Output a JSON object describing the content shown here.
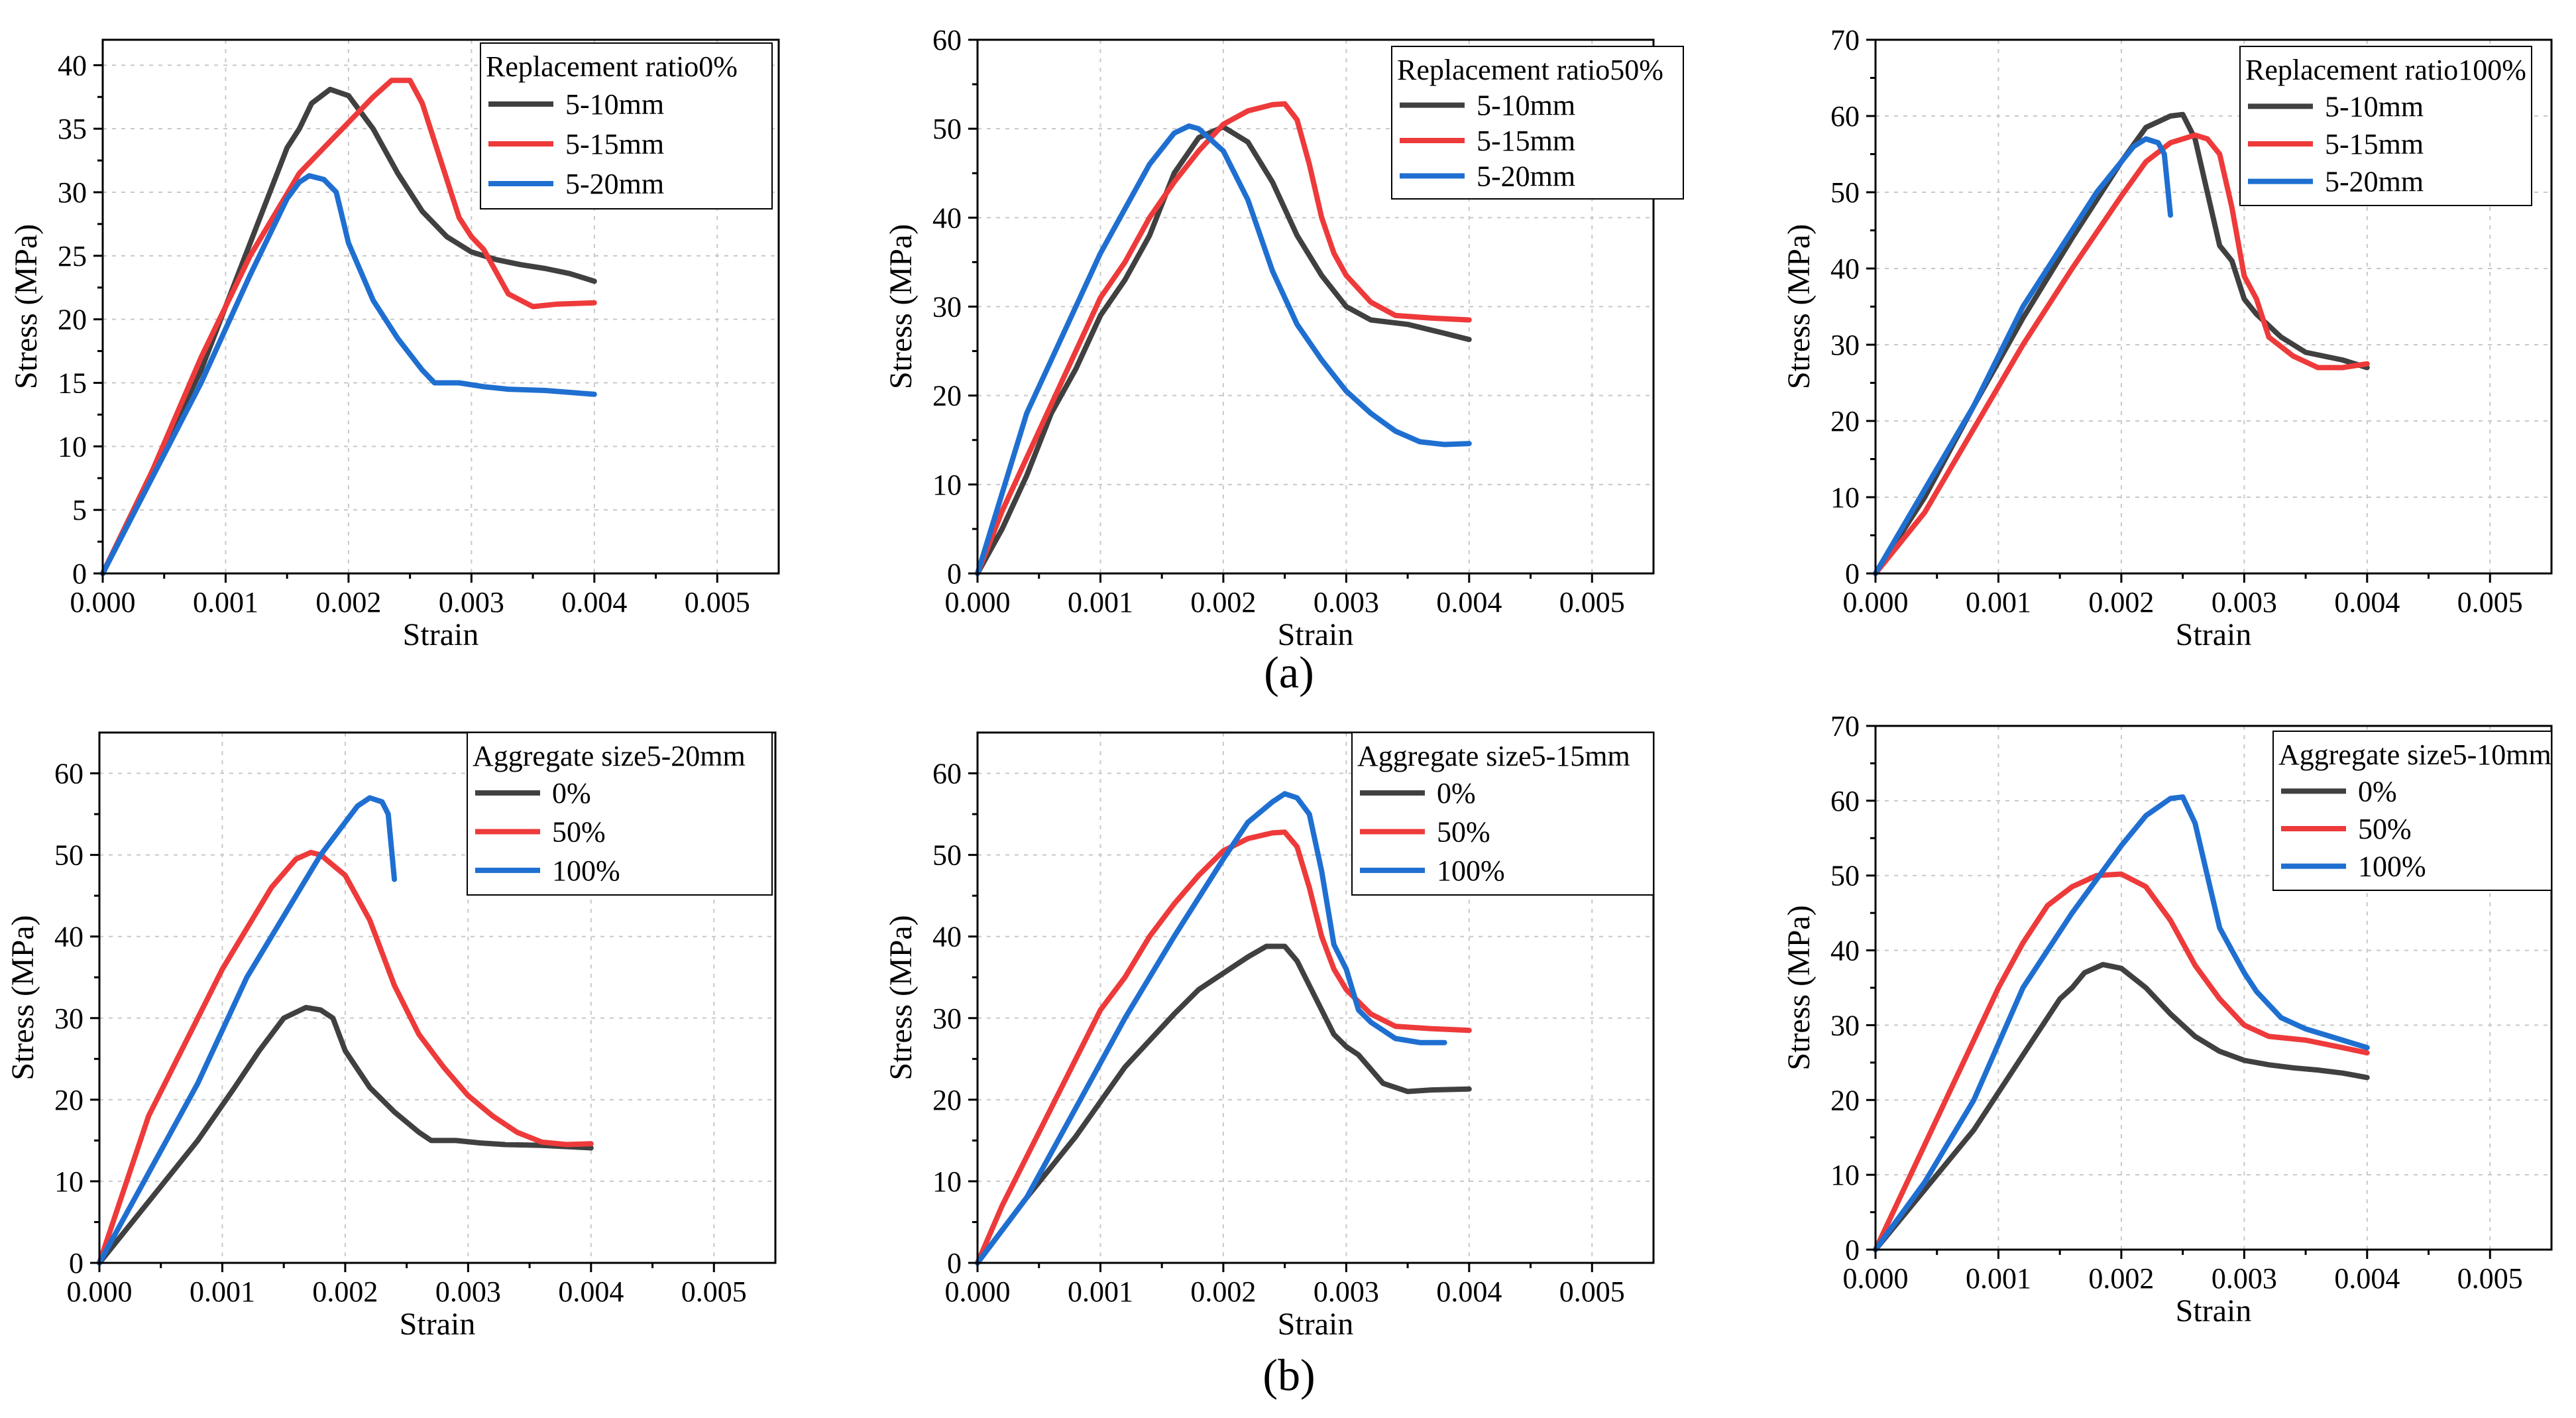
{
  "colors": {
    "series1": "#404040",
    "series2": "#ee3a3a",
    "series3": "#1f6fd1",
    "grid": "#c8c8c8"
  },
  "panel_labels": {
    "a": "(a)",
    "b": "(b)"
  },
  "chart_data": [
    {
      "type": "line",
      "title": "",
      "legend_title": "Replacement ratio0%",
      "xlabel": "Strain",
      "ylabel": "Stress (MPa)",
      "xlim": [
        0,
        0.0055
      ],
      "ylim": [
        0,
        42
      ],
      "xticks": [
        0,
        0.001,
        0.002,
        0.003,
        0.004,
        0.005
      ],
      "xtick_labels": [
        "0.000",
        "0.001",
        "0.002",
        "0.003",
        "0.004",
        "0.005"
      ],
      "yticks": [
        0,
        5,
        10,
        15,
        20,
        25,
        30,
        35,
        40
      ],
      "ytick_labels": [
        "0",
        "5",
        "10",
        "15",
        "20",
        "25",
        "30",
        "35",
        "40"
      ],
      "series": [
        {
          "name": "5-10mm",
          "x": [
            0,
            0.0004,
            0.0008,
            0.0012,
            0.0015,
            0.0016,
            0.0017,
            0.00185,
            0.002,
            0.0022,
            0.0024,
            0.0026,
            0.0028,
            0.003,
            0.0032,
            0.0034,
            0.0036,
            0.0038,
            0.004
          ],
          "y": [
            0,
            8,
            16,
            26,
            33.5,
            35,
            37,
            38.1,
            37.6,
            35,
            31.5,
            28.5,
            26.5,
            25.3,
            24.7,
            24.3,
            24,
            23.6,
            23
          ]
        },
        {
          "name": "5-15mm",
          "x": [
            0,
            0.0004,
            0.0008,
            0.0012,
            0.0016,
            0.0018,
            0.002,
            0.0022,
            0.00235,
            0.0025,
            0.0026,
            0.0027,
            0.0029,
            0.003,
            0.0031,
            0.0033,
            0.0035,
            0.0037,
            0.004
          ],
          "y": [
            0,
            8,
            17,
            25,
            31.5,
            33.5,
            35.5,
            37.5,
            38.8,
            38.8,
            37,
            34,
            28,
            26.5,
            25.5,
            22,
            21,
            21.2,
            21.3
          ]
        },
        {
          "name": "5-20mm",
          "x": [
            0,
            0.0004,
            0.0008,
            0.0012,
            0.0015,
            0.0016,
            0.00168,
            0.0018,
            0.0019,
            0.002,
            0.0022,
            0.0024,
            0.0026,
            0.0027,
            0.0029,
            0.0031,
            0.0033,
            0.0036,
            0.004
          ],
          "y": [
            0,
            7.5,
            15,
            23.5,
            29.5,
            30.8,
            31.3,
            31,
            30,
            26,
            21.5,
            18.5,
            16,
            15,
            15,
            14.7,
            14.5,
            14.4,
            14.1
          ]
        }
      ]
    },
    {
      "type": "line",
      "title": "",
      "legend_title": "Replacement ratio50%",
      "xlabel": "Strain",
      "ylabel": "Stress (MPa)",
      "xlim": [
        0,
        0.0055
      ],
      "ylim": [
        0,
        60
      ],
      "xticks": [
        0,
        0.001,
        0.002,
        0.003,
        0.004,
        0.005
      ],
      "xtick_labels": [
        "0.000",
        "0.001",
        "0.002",
        "0.003",
        "0.004",
        "0.005"
      ],
      "yticks": [
        0,
        10,
        20,
        30,
        40,
        50,
        60
      ],
      "ytick_labels": [
        "0",
        "10",
        "20",
        "30",
        "40",
        "50",
        "60"
      ],
      "series": [
        {
          "name": "5-10mm",
          "x": [
            0,
            0.0002,
            0.0004,
            0.0006,
            0.0008,
            0.001,
            0.0012,
            0.0014,
            0.0016,
            0.0018,
            0.002,
            0.0022,
            0.0024,
            0.0026,
            0.0028,
            0.003,
            0.0032,
            0.0035,
            0.0038,
            0.004
          ],
          "y": [
            0,
            5,
            11,
            18,
            23,
            29,
            33,
            38,
            45,
            49,
            50.2,
            48.5,
            44,
            38,
            33.5,
            30,
            28.5,
            28,
            27,
            26.3
          ]
        },
        {
          "name": "5-15mm",
          "x": [
            0,
            0.0002,
            0.0004,
            0.0006,
            0.0008,
            0.001,
            0.0012,
            0.0014,
            0.0016,
            0.0018,
            0.002,
            0.0022,
            0.0024,
            0.0025,
            0.0026,
            0.0027,
            0.0028,
            0.0029,
            0.003,
            0.0032,
            0.0034,
            0.0037,
            0.004
          ],
          "y": [
            0,
            7,
            13,
            19,
            25,
            31,
            35,
            40,
            44,
            47.5,
            50.5,
            52,
            52.7,
            52.8,
            51,
            46,
            40,
            36,
            33.5,
            30.5,
            29,
            28.7,
            28.5
          ]
        },
        {
          "name": "5-20mm",
          "x": [
            0,
            0.0002,
            0.0004,
            0.0006,
            0.0008,
            0.001,
            0.0012,
            0.0014,
            0.0016,
            0.00172,
            0.0018,
            0.002,
            0.0022,
            0.0024,
            0.0026,
            0.0028,
            0.003,
            0.0032,
            0.0034,
            0.0036,
            0.0038,
            0.004
          ],
          "y": [
            0,
            9,
            18,
            24,
            30,
            36,
            41,
            46,
            49.5,
            50.3,
            50,
            47.5,
            42,
            34,
            28,
            24,
            20.5,
            18,
            16,
            14.8,
            14.5,
            14.6
          ]
        }
      ]
    },
    {
      "type": "line",
      "title": "",
      "legend_title": "Replacement ratio100%",
      "xlabel": "Strain",
      "ylabel": "Stress (MPa)",
      "xlim": [
        0,
        0.0055
      ],
      "ylim": [
        0,
        70
      ],
      "xticks": [
        0,
        0.001,
        0.002,
        0.003,
        0.004,
        0.005
      ],
      "xtick_labels": [
        "0.000",
        "0.001",
        "0.002",
        "0.003",
        "0.004",
        "0.005"
      ],
      "yticks": [
        0,
        10,
        20,
        30,
        40,
        50,
        60,
        70
      ],
      "ytick_labels": [
        "0",
        "10",
        "20",
        "30",
        "40",
        "50",
        "60",
        "70"
      ],
      "series": [
        {
          "name": "5-10mm",
          "x": [
            0,
            0.0004,
            0.0008,
            0.0012,
            0.0016,
            0.002,
            0.0022,
            0.0024,
            0.0025,
            0.0026,
            0.0027,
            0.0028,
            0.0029,
            0.003,
            0.0031,
            0.0033,
            0.0035,
            0.0038,
            0.004
          ],
          "y": [
            0,
            10,
            22,
            33.5,
            44,
            54,
            58.5,
            60,
            60.2,
            57,
            50,
            43,
            41,
            36,
            34,
            31,
            29,
            28,
            27
          ]
        },
        {
          "name": "5-15mm",
          "x": [
            0,
            0.0004,
            0.0008,
            0.0012,
            0.0016,
            0.002,
            0.0022,
            0.0024,
            0.0026,
            0.0027,
            0.0028,
            0.0029,
            0.003,
            0.0031,
            0.0032,
            0.0034,
            0.0036,
            0.0038,
            0.004
          ],
          "y": [
            0,
            8,
            19,
            30,
            40,
            49.5,
            54,
            56.5,
            57.5,
            57,
            55,
            48,
            39,
            36,
            31,
            28.5,
            27,
            27,
            27.5
          ]
        },
        {
          "name": "5-20mm",
          "x": [
            0,
            0.0004,
            0.0008,
            0.0012,
            0.0016,
            0.0018,
            0.002,
            0.0021,
            0.0022,
            0.0023,
            0.00235,
            0.0024
          ],
          "y": [
            0,
            11,
            22,
            35,
            45,
            50,
            54,
            56,
            57,
            56.5,
            55,
            47
          ]
        }
      ]
    },
    {
      "type": "line",
      "title": "",
      "legend_title": "Aggregate size5-20mm",
      "xlabel": "Strain",
      "ylabel": "Stress (MPa)",
      "xlim": [
        0,
        0.0055
      ],
      "ylim": [
        0,
        65
      ],
      "xticks": [
        0,
        0.001,
        0.002,
        0.003,
        0.004,
        0.005
      ],
      "xtick_labels": [
        "0.000",
        "0.001",
        "0.002",
        "0.003",
        "0.004",
        "0.005"
      ],
      "yticks": [
        0,
        10,
        20,
        30,
        40,
        50,
        60
      ],
      "ytick_labels": [
        "0",
        "10",
        "20",
        "30",
        "40",
        "50",
        "60"
      ],
      "series": [
        {
          "name": "0%",
          "x": [
            0,
            0.0004,
            0.0008,
            0.0011,
            0.0013,
            0.0015,
            0.00168,
            0.0018,
            0.0019,
            0.002,
            0.0022,
            0.0024,
            0.0026,
            0.0027,
            0.0029,
            0.0031,
            0.0033,
            0.0036,
            0.004
          ],
          "y": [
            0,
            7.5,
            15,
            21.5,
            26,
            30,
            31.3,
            31,
            30,
            26,
            21.5,
            18.5,
            16,
            15,
            15,
            14.7,
            14.5,
            14.4,
            14.1
          ]
        },
        {
          "name": "50%",
          "x": [
            0,
            0.0002,
            0.0004,
            0.0006,
            0.0008,
            0.001,
            0.0012,
            0.0014,
            0.0016,
            0.00172,
            0.0018,
            0.002,
            0.0022,
            0.0024,
            0.0026,
            0.0028,
            0.003,
            0.0032,
            0.0034,
            0.0036,
            0.0038,
            0.004
          ],
          "y": [
            0,
            9,
            18,
            24,
            30,
            36,
            41,
            46,
            49.5,
            50.3,
            50,
            47.5,
            42,
            34,
            28,
            24,
            20.5,
            18,
            16,
            14.8,
            14.5,
            14.6
          ]
        },
        {
          "name": "100%",
          "x": [
            0,
            0.0004,
            0.0008,
            0.0012,
            0.0016,
            0.0018,
            0.002,
            0.0021,
            0.0022,
            0.0023,
            0.00235,
            0.0024
          ],
          "y": [
            0,
            11,
            22,
            35,
            45,
            50,
            54,
            56,
            57,
            56.5,
            55,
            47
          ]
        }
      ]
    },
    {
      "type": "line",
      "title": "",
      "legend_title": "Aggregate size5-15mm",
      "xlabel": "Strain",
      "ylabel": "Stress (MPa)",
      "xlim": [
        0,
        0.0055
      ],
      "ylim": [
        0,
        65
      ],
      "xticks": [
        0,
        0.001,
        0.002,
        0.003,
        0.004,
        0.005
      ],
      "xtick_labels": [
        "0.000",
        "0.001",
        "0.002",
        "0.003",
        "0.004",
        "0.005"
      ],
      "yticks": [
        0,
        10,
        20,
        30,
        40,
        50,
        60
      ],
      "ytick_labels": [
        "0",
        "10",
        "20",
        "30",
        "40",
        "50",
        "60"
      ],
      "series": [
        {
          "name": "0%",
          "x": [
            0,
            0.0004,
            0.0008,
            0.0012,
            0.0016,
            0.0018,
            0.002,
            0.0022,
            0.00235,
            0.0025,
            0.0026,
            0.0027,
            0.0029,
            0.003,
            0.0031,
            0.0033,
            0.0035,
            0.0037,
            0.004
          ],
          "y": [
            0,
            8,
            15.5,
            24,
            30.5,
            33.5,
            35.5,
            37.5,
            38.8,
            38.8,
            37,
            34,
            28,
            26.5,
            25.5,
            22,
            21,
            21.2,
            21.3
          ]
        },
        {
          "name": "50%",
          "x": [
            0,
            0.0002,
            0.0004,
            0.0006,
            0.0008,
            0.001,
            0.0012,
            0.0014,
            0.0016,
            0.0018,
            0.002,
            0.0022,
            0.0024,
            0.0025,
            0.0026,
            0.0027,
            0.0028,
            0.0029,
            0.003,
            0.0032,
            0.0034,
            0.0037,
            0.004
          ],
          "y": [
            0,
            7,
            13,
            19,
            25,
            31,
            35,
            40,
            44,
            47.5,
            50.5,
            52,
            52.7,
            52.8,
            51,
            46,
            40,
            36,
            33.5,
            30.5,
            29,
            28.7,
            28.5
          ]
        },
        {
          "name": "100%",
          "x": [
            0,
            0.0004,
            0.0008,
            0.0012,
            0.0016,
            0.002,
            0.0022,
            0.0024,
            0.0025,
            0.0026,
            0.0027,
            0.0028,
            0.0029,
            0.003,
            0.0031,
            0.0032,
            0.0034,
            0.0036,
            0.0038
          ],
          "y": [
            0,
            8,
            19,
            30,
            40,
            49.5,
            54,
            56.5,
            57.5,
            57,
            55,
            48,
            39,
            36,
            31,
            29.5,
            27.5,
            27,
            27
          ]
        }
      ]
    },
    {
      "type": "line",
      "title": "",
      "legend_title": "Aggregate size5-10mm",
      "xlabel": "Strain",
      "ylabel": "Stress (MPa)",
      "xlim": [
        0,
        0.0055
      ],
      "ylim": [
        0,
        70
      ],
      "xticks": [
        0,
        0.001,
        0.002,
        0.003,
        0.004,
        0.005
      ],
      "xtick_labels": [
        "0.000",
        "0.001",
        "0.002",
        "0.003",
        "0.004",
        "0.005"
      ],
      "yticks": [
        0,
        10,
        20,
        30,
        40,
        50,
        60,
        70
      ],
      "ytick_labels": [
        "0",
        "10",
        "20",
        "30",
        "40",
        "50",
        "60",
        "70"
      ],
      "series": [
        {
          "name": "0%",
          "x": [
            0,
            0.0004,
            0.0008,
            0.0012,
            0.0015,
            0.0016,
            0.0017,
            0.00185,
            0.002,
            0.0022,
            0.0024,
            0.0026,
            0.0028,
            0.003,
            0.0032,
            0.0034,
            0.0036,
            0.0038,
            0.004
          ],
          "y": [
            0,
            8,
            16,
            26,
            33.5,
            35,
            37,
            38.1,
            37.6,
            35,
            31.5,
            28.5,
            26.5,
            25.3,
            24.7,
            24.3,
            24,
            23.6,
            23
          ]
        },
        {
          "name": "50%",
          "x": [
            0,
            0.0002,
            0.0004,
            0.0006,
            0.0008,
            0.001,
            0.0012,
            0.0014,
            0.0016,
            0.0018,
            0.002,
            0.0022,
            0.0024,
            0.0026,
            0.0028,
            0.003,
            0.0032,
            0.0035,
            0.0038,
            0.004
          ],
          "y": [
            0,
            7,
            14,
            21,
            28,
            35,
            41,
            46,
            48.5,
            50,
            50.2,
            48.5,
            44,
            38,
            33.5,
            30,
            28.5,
            28,
            27,
            26.3
          ]
        },
        {
          "name": "100%",
          "x": [
            0,
            0.0004,
            0.0008,
            0.0012,
            0.0016,
            0.002,
            0.0022,
            0.0024,
            0.0025,
            0.0026,
            0.0027,
            0.0028,
            0.0029,
            0.003,
            0.0031,
            0.0033,
            0.0035,
            0.0038,
            0.004
          ],
          "y": [
            0,
            9,
            20,
            35,
            45,
            54,
            58,
            60.3,
            60.5,
            57,
            50,
            43,
            40,
            37,
            34.5,
            31,
            29.5,
            28,
            27
          ]
        }
      ]
    }
  ]
}
